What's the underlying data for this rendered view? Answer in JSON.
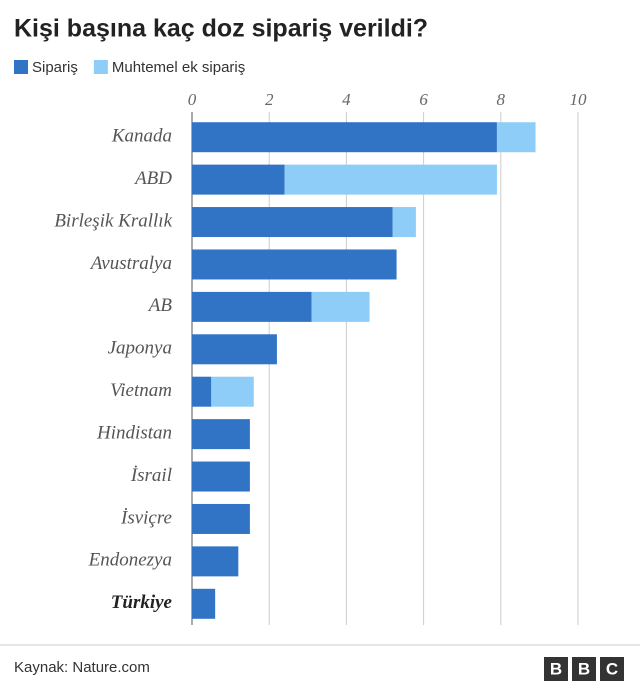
{
  "chart_data": {
    "type": "stacked-bar-horizontal",
    "title": "Kişi başına kaç doz sipariş verildi?",
    "categories": [
      "Kanada",
      "ABD",
      "Birleşik Krallık",
      "Avustralya",
      "AB",
      "Japonya",
      "Vietnam",
      "Hindistan",
      "İsrail",
      "İsviçre",
      "Endonezya",
      "Türkiye"
    ],
    "series": [
      {
        "name": "Sipariş",
        "color": "#3174c6",
        "values": [
          7.9,
          2.4,
          5.2,
          5.3,
          3.1,
          2.2,
          0.5,
          1.5,
          1.5,
          1.5,
          1.2,
          0.6
        ]
      },
      {
        "name": "Muhtemel ek sipariş",
        "color": "#8ecdf7",
        "values": [
          1.0,
          5.5,
          0.6,
          null,
          1.5,
          null,
          1.1,
          null,
          null,
          null,
          null,
          null
        ]
      }
    ],
    "xlim": [
      0,
      10
    ],
    "xticks": [
      0,
      2,
      4,
      6,
      8,
      10
    ],
    "grid": true,
    "source": "Kaynak: Nature.com",
    "logo": [
      "B",
      "B",
      "C"
    ]
  }
}
